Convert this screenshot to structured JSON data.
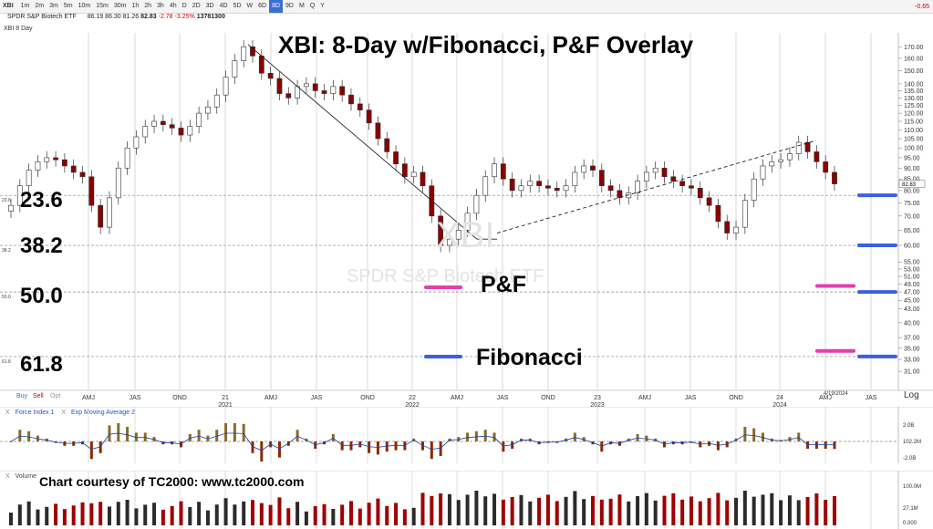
{
  "app": {
    "ticker": "XBI",
    "timeframes": [
      "1m",
      "2m",
      "3m",
      "5m",
      "10m",
      "15m",
      "30m",
      "1h",
      "2h",
      "3h",
      "4h",
      "D",
      "2D",
      "3D",
      "4D",
      "5D",
      "W",
      "6D",
      "8D",
      "9D",
      "M",
      "Q",
      "Y"
    ],
    "active_timeframe": "8D",
    "change_corner": "-0.65"
  },
  "quote": {
    "name": "SPDR S&P Biotech ETF",
    "open": "86.19",
    "high": "86.30",
    "low": "81.26",
    "close": "82.83",
    "change": "-2.78",
    "change_pct": "-3.25%",
    "volume": "13781300"
  },
  "chart_title_small": "XBI 8 Day",
  "annotations": {
    "title": "XBI:  8-Day w/Fibonacci, P&F Overlay",
    "fib_labels": [
      "23.6",
      "38.2",
      "50.0",
      "61.8"
    ],
    "legend_pf": "P&F",
    "legend_fib": "Fibonacci",
    "courtesy": "Chart courtesy of TC2000:  www.tc2000.com",
    "watermark_ticker": "XBI",
    "watermark_name": "SPDR S&P Biotech ETF",
    "fib_left_small": [
      "23.6",
      "38.2",
      "50.0",
      "61.8"
    ],
    "date_marker": "4/19/2024",
    "log_label": "Log",
    "buy_label": "Buy",
    "sell_label": "Sell",
    "opt_label": "Opt"
  },
  "colors": {
    "up": "#ffffff",
    "down": "#8b0000",
    "pf": "#e63cb0",
    "fib": "#3b5fe0",
    "grid": "#bdbdbd"
  },
  "indicators": {
    "force_label": "Force Index 1",
    "ema_label": "Exp Moving Average 2",
    "force_ticks": [
      "2.0B",
      "102.2M",
      "-2.0B"
    ],
    "volume_label": "Volume",
    "volume_ticks": [
      "100.0M",
      "27.1M",
      "0.000"
    ]
  },
  "chart_data": {
    "type": "candlestick",
    "title": "XBI:  8-Day w/Fibonacci, P&F Overlay",
    "y_scale": "log",
    "ylim": [
      30,
      176
    ],
    "y_ticks": [
      31,
      33,
      35,
      37,
      40,
      43,
      45,
      47,
      49,
      51,
      53,
      55,
      60,
      65,
      70,
      75,
      80,
      85,
      90,
      95,
      100,
      105,
      110,
      115,
      120,
      125,
      130,
      135,
      140,
      150,
      160,
      170
    ],
    "x_ticks": [
      "AMJ",
      "JAS",
      "OND",
      "21",
      "AMJ",
      "JAS",
      "OND",
      "22",
      "AMJ",
      "JAS",
      "OND",
      "23",
      "AMJ",
      "JAS",
      "OND",
      "24",
      "AMJ",
      "JAS"
    ],
    "x_years": [
      "2021",
      "2022",
      "2023",
      "2024"
    ],
    "closes": [
      74,
      82,
      89,
      93,
      95,
      94,
      91,
      88,
      86,
      74,
      66,
      77,
      90,
      100,
      106,
      112,
      115,
      113,
      111,
      107,
      112,
      120,
      124,
      132,
      145,
      158,
      170,
      162,
      148,
      144,
      133,
      130,
      138,
      140,
      135,
      133,
      138,
      132,
      126,
      122,
      114,
      105,
      98,
      92,
      86,
      88,
      82,
      70,
      60,
      62,
      65,
      71,
      78,
      86,
      92,
      85,
      80,
      82,
      84,
      82,
      81,
      80,
      82,
      88,
      91,
      89,
      82,
      80,
      77,
      79,
      84,
      88,
      90,
      86,
      84,
      82,
      81,
      77,
      74,
      68,
      64,
      66,
      76,
      85,
      91,
      93,
      94,
      97,
      103,
      98,
      93,
      88,
      82.83
    ],
    "fib_levels": [
      {
        "label": "23.6",
        "value": 78
      },
      {
        "label": "38.2",
        "value": 60
      },
      {
        "label": "50.0",
        "value": 47
      },
      {
        "label": "61.8",
        "value": 33.5
      }
    ],
    "pf_targets": [
      48.5,
      34.5
    ],
    "fib_targets": [
      78,
      60,
      47,
      33.5
    ]
  }
}
